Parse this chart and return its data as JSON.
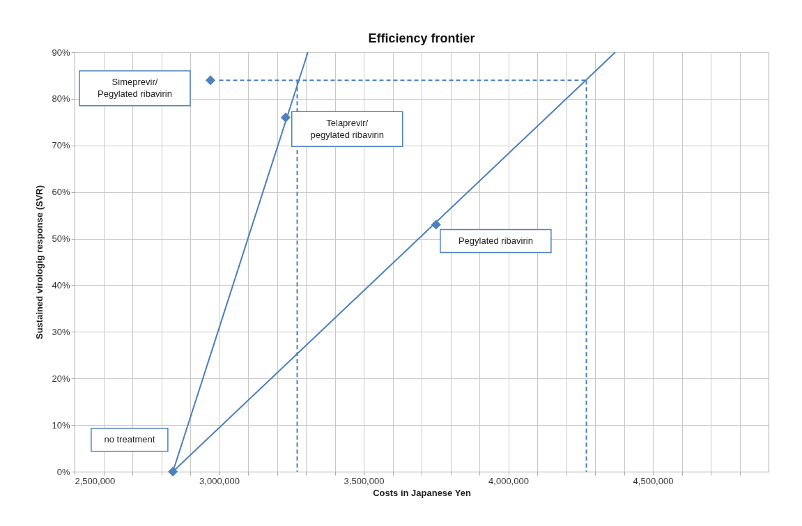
{
  "chart_data": {
    "type": "line",
    "title": "Efficiency frontier",
    "xlabel": "Costs in Japanese Yen",
    "ylabel": "Sustained virologig response (SVR)",
    "xlim": [
      2500000,
      4900000
    ],
    "xticks": [
      {
        "value": 2500000,
        "label": "2,500,000"
      },
      {
        "value": 2600000,
        "label": null
      },
      {
        "value": 2700000,
        "label": null
      },
      {
        "value": 2800000,
        "label": null
      },
      {
        "value": 2900000,
        "label": null
      },
      {
        "value": 3000000,
        "label": "3,000,000"
      },
      {
        "value": 3100000,
        "label": null
      },
      {
        "value": 3200000,
        "label": null
      },
      {
        "value": 3300000,
        "label": null
      },
      {
        "value": 3400000,
        "label": null
      },
      {
        "value": 3500000,
        "label": "3,500,000"
      },
      {
        "value": 3600000,
        "label": null
      },
      {
        "value": 3700000,
        "label": null
      },
      {
        "value": 3800000,
        "label": null
      },
      {
        "value": 3900000,
        "label": null
      },
      {
        "value": 4000000,
        "label": "4,000,000"
      },
      {
        "value": 4100000,
        "label": null
      },
      {
        "value": 4200000,
        "label": null
      },
      {
        "value": 4300000,
        "label": null
      },
      {
        "value": 4400000,
        "label": null
      },
      {
        "value": 4500000,
        "label": "4,500,000"
      },
      {
        "value": 4600000,
        "label": null
      },
      {
        "value": 4700000,
        "label": null
      },
      {
        "value": 4800000,
        "label": null
      }
    ],
    "ylim": [
      0,
      90
    ],
    "yticks": [
      {
        "value": 0,
        "label": "0%"
      },
      {
        "value": 10,
        "label": "10%"
      },
      {
        "value": 20,
        "label": "20%"
      },
      {
        "value": 30,
        "label": "30%"
      },
      {
        "value": 40,
        "label": "40%"
      },
      {
        "value": 50,
        "label": "50%"
      },
      {
        "value": 60,
        "label": "60%"
      },
      {
        "value": 70,
        "label": "70%"
      },
      {
        "value": 80,
        "label": "80%"
      },
      {
        "value": 90,
        "label": "90%"
      }
    ],
    "grid": true,
    "series": [
      {
        "color": "#4a7ebb",
        "x": [
          2840000,
          3307000
        ],
        "values": [
          0,
          90
        ]
      },
      {
        "color": "#4a7ebb",
        "x": [
          2840000,
          4370000
        ],
        "values": [
          0,
          90
        ]
      },
      {
        "color": "#4a7ebb",
        "line_style": "dashed",
        "x": [
          3000000,
          4270000
        ],
        "values": [
          84,
          84
        ]
      },
      {
        "color": "#4a7ebb",
        "line_style": "dashed",
        "x": [
          4270000,
          4270000
        ],
        "values": [
          84,
          0
        ]
      },
      {
        "color": "#4a7ebb",
        "line_style": "dashed",
        "x": [
          3270000,
          3270000
        ],
        "values": [
          84,
          0
        ]
      },
      {
        "type": "scatter",
        "color": "#4f81bd",
        "marker": "diamond",
        "x": [
          2840000,
          2970000,
          3230000,
          3750000
        ],
        "values": [
          0,
          84,
          76,
          53
        ]
      }
    ],
    "annotations": [
      "Simeprevir/\nPegylated ribavirin",
      "Telaprevir/\npegylated ribavirin",
      "Pegylated ribavirin",
      "no treatment"
    ]
  }
}
